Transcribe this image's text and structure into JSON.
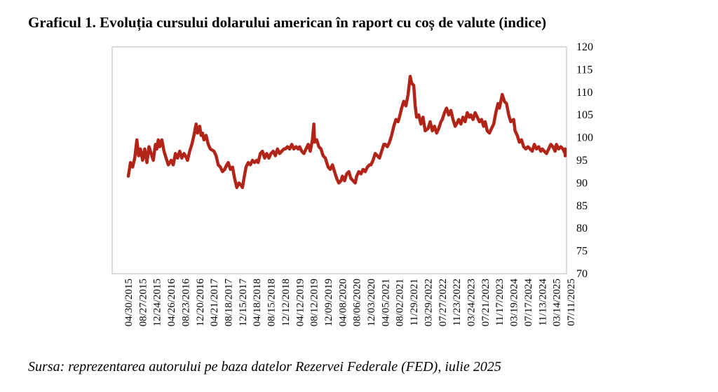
{
  "title": "Graficul 1. Evoluția cursului dolarului american în raport cu coș de valute (indice)",
  "source": "Sursa: reprezentarea autorului pe baza datelor Rezervei Federale (FED), iulie 2025",
  "colors": {
    "series": "#b22418",
    "frame": "#b8b8b8",
    "text": "#000000"
  },
  "chart_data": {
    "type": "line",
    "title": "Graficul 1. Evoluția cursului dolarului american în raport cu coș de valute (indice)",
    "xlabel": "",
    "ylabel": "",
    "ylim": [
      70,
      120
    ],
    "yticks": [
      70,
      75,
      80,
      85,
      90,
      95,
      100,
      105,
      110,
      115,
      120
    ],
    "y_axis_position": "right",
    "grid": false,
    "legend": "none",
    "x_tick_labels": [
      "04/30/2015",
      "08/27/2015",
      "12/24/2015",
      "04/26/2016",
      "08/23/2016",
      "12/20/2016",
      "04/21/2017",
      "08/18/2017",
      "12/15/2017",
      "04/18/2018",
      "08/15/2018",
      "12/12/2018",
      "04/12/2019",
      "08/12/2019",
      "12/09/2019",
      "04/08/2020",
      "08/06/2020",
      "12/03/2020",
      "04/05/2021",
      "08/02/2021",
      "11/29/2021",
      "03/29/2022",
      "07/27/2022",
      "11/23/2022",
      "03/24/2023",
      "07/21/2023",
      "11/17/2023",
      "03/19/2024",
      "07/17/2024",
      "11/13/2024",
      "03/14/2025",
      "07/11/2025"
    ],
    "series": [
      {
        "values": [
          [
            0,
            91.5
          ],
          [
            0.15,
            94.5
          ],
          [
            0.3,
            93.5
          ],
          [
            0.45,
            95.5
          ],
          [
            0.6,
            99.5
          ],
          [
            0.72,
            96.0
          ],
          [
            0.85,
            97.5
          ],
          [
            1.0,
            95.0
          ],
          [
            1.15,
            97.5
          ],
          [
            1.3,
            94.5
          ],
          [
            1.45,
            98.0
          ],
          [
            1.6,
            96.5
          ],
          [
            1.75,
            95.0
          ],
          [
            1.9,
            98.5
          ],
          [
            2.0,
            97.5
          ],
          [
            2.1,
            99.5
          ],
          [
            2.2,
            98.0
          ],
          [
            2.35,
            99.5
          ],
          [
            2.5,
            97.0
          ],
          [
            2.65,
            95.5
          ],
          [
            2.8,
            94.0
          ],
          [
            3.0,
            95.0
          ],
          [
            3.15,
            94.0
          ],
          [
            3.3,
            96.5
          ],
          [
            3.45,
            95.5
          ],
          [
            3.6,
            97.0
          ],
          [
            3.75,
            95.5
          ],
          [
            3.9,
            96.5
          ],
          [
            4.0,
            96.0
          ],
          [
            4.15,
            95.0
          ],
          [
            4.3,
            97.0
          ],
          [
            4.45,
            98.5
          ],
          [
            4.6,
            100.5
          ],
          [
            4.75,
            103.0
          ],
          [
            4.85,
            101.0
          ],
          [
            5.0,
            102.5
          ],
          [
            5.1,
            100.5
          ],
          [
            5.2,
            101.0
          ],
          [
            5.3,
            99.5
          ],
          [
            5.45,
            100.5
          ],
          [
            5.6,
            98.5
          ],
          [
            5.75,
            97.5
          ],
          [
            6.0,
            97.0
          ],
          [
            6.15,
            96.0
          ],
          [
            6.3,
            94.0
          ],
          [
            6.45,
            93.5
          ],
          [
            6.6,
            92.5
          ],
          [
            6.75,
            93.0
          ],
          [
            6.9,
            94.0
          ],
          [
            7.0,
            94.5
          ],
          [
            7.15,
            93.0
          ],
          [
            7.3,
            93.5
          ],
          [
            7.45,
            91.0
          ],
          [
            7.6,
            89.0
          ],
          [
            7.75,
            90.0
          ],
          [
            7.9,
            89.5
          ],
          [
            8.0,
            89.0
          ],
          [
            8.1,
            91.0
          ],
          [
            8.25,
            93.5
          ],
          [
            8.4,
            94.5
          ],
          [
            8.55,
            94.0
          ],
          [
            8.7,
            95.0
          ],
          [
            8.85,
            94.5
          ],
          [
            9.0,
            95.0
          ],
          [
            9.1,
            94.5
          ],
          [
            9.25,
            96.5
          ],
          [
            9.4,
            97.0
          ],
          [
            9.55,
            95.5
          ],
          [
            9.7,
            96.5
          ],
          [
            9.85,
            95.5
          ],
          [
            10.0,
            96.5
          ],
          [
            10.15,
            97.0
          ],
          [
            10.3,
            96.0
          ],
          [
            10.45,
            97.5
          ],
          [
            10.6,
            96.5
          ],
          [
            10.75,
            97.0
          ],
          [
            10.9,
            97.5
          ],
          [
            11.0,
            97.5
          ],
          [
            11.15,
            98.0
          ],
          [
            11.3,
            97.5
          ],
          [
            11.45,
            98.5
          ],
          [
            11.6,
            97.5
          ],
          [
            11.75,
            98.0
          ],
          [
            11.9,
            97.5
          ],
          [
            12.0,
            98.0
          ],
          [
            12.15,
            97.0
          ],
          [
            12.3,
            96.5
          ],
          [
            12.45,
            97.5
          ],
          [
            12.6,
            98.5
          ],
          [
            12.75,
            97.0
          ],
          [
            12.9,
            99.5
          ],
          [
            13.0,
            103.0
          ],
          [
            13.05,
            99.0
          ],
          [
            13.2,
            99.5
          ],
          [
            13.35,
            98.0
          ],
          [
            13.5,
            97.5
          ],
          [
            13.65,
            96.0
          ],
          [
            13.8,
            95.5
          ],
          [
            14.0,
            93.5
          ],
          [
            14.15,
            93.0
          ],
          [
            14.3,
            94.0
          ],
          [
            14.45,
            92.5
          ],
          [
            14.6,
            91.0
          ],
          [
            14.75,
            90.0
          ],
          [
            14.9,
            90.5
          ],
          [
            15.0,
            91.5
          ],
          [
            15.15,
            90.5
          ],
          [
            15.3,
            92.0
          ],
          [
            15.45,
            92.5
          ],
          [
            15.6,
            91.0
          ],
          [
            15.75,
            90.5
          ],
          [
            15.9,
            90.0
          ],
          [
            16.0,
            91.5
          ],
          [
            16.15,
            92.5
          ],
          [
            16.3,
            92.0
          ],
          [
            16.45,
            93.0
          ],
          [
            16.6,
            92.5
          ],
          [
            16.75,
            93.5
          ],
          [
            16.9,
            94.0
          ],
          [
            17.0,
            94.0
          ],
          [
            17.15,
            95.0
          ],
          [
            17.3,
            96.5
          ],
          [
            17.45,
            96.0
          ],
          [
            17.6,
            95.5
          ],
          [
            17.75,
            97.0
          ],
          [
            17.9,
            98.5
          ],
          [
            18.0,
            98.5
          ],
          [
            18.15,
            98.0
          ],
          [
            18.3,
            99.0
          ],
          [
            18.45,
            100.5
          ],
          [
            18.6,
            102.5
          ],
          [
            18.75,
            104.0
          ],
          [
            18.9,
            103.5
          ],
          [
            19.0,
            104.5
          ],
          [
            19.15,
            106.5
          ],
          [
            19.3,
            108.0
          ],
          [
            19.45,
            107.0
          ],
          [
            19.6,
            109.5
          ],
          [
            19.75,
            113.5
          ],
          [
            19.85,
            112.0
          ],
          [
            20.0,
            111.5
          ],
          [
            20.1,
            107.0
          ],
          [
            20.2,
            104.5
          ],
          [
            20.35,
            105.0
          ],
          [
            20.5,
            103.0
          ],
          [
            20.65,
            104.5
          ],
          [
            20.8,
            101.5
          ],
          [
            21.0,
            102.0
          ],
          [
            21.15,
            103.5
          ],
          [
            21.3,
            101.5
          ],
          [
            21.45,
            102.5
          ],
          [
            21.6,
            101.0
          ],
          [
            21.75,
            102.0
          ],
          [
            21.9,
            103.5
          ],
          [
            22.0,
            104.0
          ],
          [
            22.15,
            105.5
          ],
          [
            22.3,
            106.5
          ],
          [
            22.45,
            105.0
          ],
          [
            22.6,
            106.0
          ],
          [
            22.75,
            104.0
          ],
          [
            22.9,
            102.5
          ],
          [
            23.0,
            103.0
          ],
          [
            23.15,
            104.0
          ],
          [
            23.3,
            103.0
          ],
          [
            23.45,
            104.5
          ],
          [
            23.6,
            103.5
          ],
          [
            23.75,
            105.5
          ],
          [
            23.9,
            104.5
          ],
          [
            24.0,
            105.0
          ],
          [
            24.15,
            104.0
          ],
          [
            24.3,
            105.5
          ],
          [
            24.45,
            104.5
          ],
          [
            24.6,
            103.5
          ],
          [
            24.75,
            104.0
          ],
          [
            24.9,
            102.5
          ],
          [
            25.0,
            103.5
          ],
          [
            25.15,
            101.5
          ],
          [
            25.3,
            101.0
          ],
          [
            25.45,
            102.0
          ],
          [
            25.6,
            103.0
          ],
          [
            25.75,
            105.5
          ],
          [
            25.9,
            107.5
          ],
          [
            26.0,
            106.5
          ],
          [
            26.1,
            108.0
          ],
          [
            26.2,
            109.5
          ],
          [
            26.35,
            108.0
          ],
          [
            26.5,
            107.5
          ],
          [
            26.65,
            105.0
          ],
          [
            26.8,
            103.5
          ],
          [
            27.0,
            104.0
          ],
          [
            27.1,
            101.5
          ],
          [
            27.25,
            100.5
          ],
          [
            27.4,
            99.0
          ],
          [
            27.55,
            99.5
          ],
          [
            27.7,
            98.0
          ],
          [
            27.85,
            97.5
          ],
          [
            28.0,
            98.0
          ],
          [
            28.15,
            97.5
          ],
          [
            28.3,
            97.0
          ],
          [
            28.45,
            98.5
          ],
          [
            28.6,
            97.5
          ],
          [
            28.75,
            98.0
          ],
          [
            28.9,
            97.0
          ],
          [
            29.0,
            97.5
          ],
          [
            29.15,
            97.0
          ],
          [
            29.3,
            96.5
          ],
          [
            29.45,
            97.5
          ],
          [
            29.6,
            98.5
          ],
          [
            29.75,
            98.0
          ],
          [
            29.9,
            97.0
          ],
          [
            30.0,
            98.5
          ],
          [
            30.15,
            97.5
          ],
          [
            30.3,
            98.0
          ],
          [
            30.45,
            97.5
          ],
          [
            30.6,
            96.5
          ],
          [
            30.75,
            97.5
          ],
          [
            30.9,
            96.0
          ],
          [
            31.0,
            97.0
          ]
        ]
      }
    ]
  }
}
